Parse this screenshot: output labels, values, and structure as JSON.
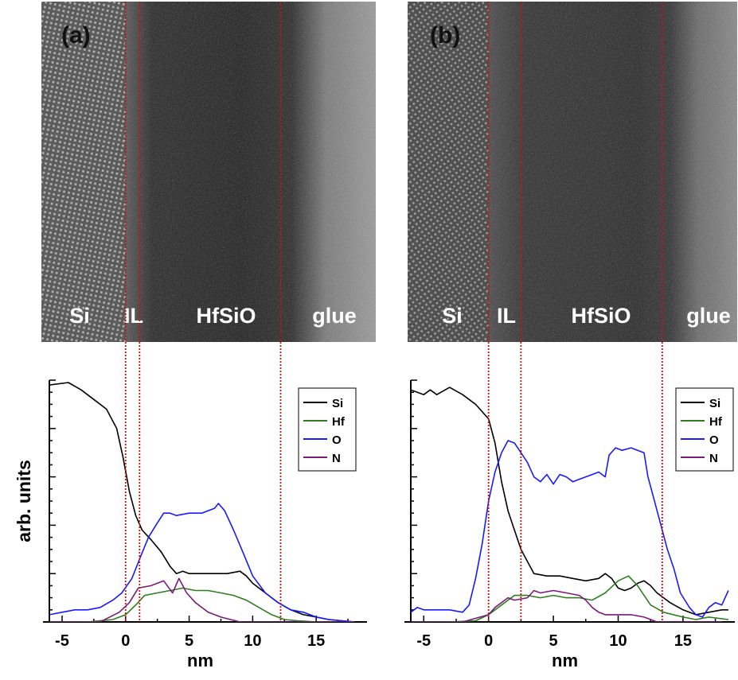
{
  "colors": {
    "Si": "#000000",
    "Hf": "#2e7d1e",
    "O": "#1a1aff",
    "N": "#7a1a7a",
    "boundary": "#cc1111"
  },
  "panels": [
    {
      "letter": "(a)",
      "tem_labels": [
        "Si",
        "IL",
        "HfSiO",
        "glue"
      ],
      "boundaries_nm": [
        0,
        1.1,
        12.2
      ]
    },
    {
      "letter": "(b)",
      "tem_labels": [
        "Si",
        "IL",
        "HfSiO",
        "glue"
      ],
      "boundaries_nm": [
        0,
        2.5,
        13.4
      ]
    }
  ],
  "chart_data": [
    {
      "type": "line",
      "xlabel": "nm",
      "ylabel": "arb. units",
      "xlim": [
        -6,
        19
      ],
      "ylim": [
        0,
        100
      ],
      "xticks": [
        -5,
        0,
        5,
        10,
        15
      ],
      "legend_position": "top-right",
      "series": [
        {
          "name": "Si",
          "points": [
            [
              -6,
              98
            ],
            [
              -4.5,
              99
            ],
            [
              -3.5,
              96
            ],
            [
              -2.5,
              92
            ],
            [
              -1.5,
              88
            ],
            [
              -0.7,
              80
            ],
            [
              -0.2,
              68
            ],
            [
              0.3,
              54
            ],
            [
              0.8,
              44
            ],
            [
              1.3,
              38
            ],
            [
              2,
              34
            ],
            [
              2.8,
              29
            ],
            [
              3.5,
              23
            ],
            [
              4,
              20
            ],
            [
              4.5,
              21
            ],
            [
              5,
              20
            ],
            [
              6,
              20
            ],
            [
              7,
              20
            ],
            [
              8,
              20
            ],
            [
              9,
              21
            ],
            [
              9.5,
              19
            ],
            [
              10,
              16
            ],
            [
              11,
              12
            ],
            [
              12,
              8
            ],
            [
              13,
              5
            ],
            [
              14,
              3
            ],
            [
              15,
              2
            ],
            [
              16,
              1
            ],
            [
              17,
              0.5
            ],
            [
              18,
              0
            ]
          ]
        },
        {
          "name": "Hf",
          "points": [
            [
              -6,
              0
            ],
            [
              -3,
              0
            ],
            [
              -1,
              1
            ],
            [
              0,
              3
            ],
            [
              0.8,
              7
            ],
            [
              1.5,
              11
            ],
            [
              2.5,
              12
            ],
            [
              3.5,
              13
            ],
            [
              4.5,
              14
            ],
            [
              5.5,
              13
            ],
            [
              6.5,
              13
            ],
            [
              7.5,
              12
            ],
            [
              8.5,
              11
            ],
            [
              9.5,
              9
            ],
            [
              10.5,
              6
            ],
            [
              11.5,
              3
            ],
            [
              12.5,
              1
            ],
            [
              13.5,
              0.5
            ],
            [
              15,
              0
            ],
            [
              18,
              0
            ]
          ]
        },
        {
          "name": "O",
          "points": [
            [
              -6,
              3
            ],
            [
              -5,
              4
            ],
            [
              -4,
              5
            ],
            [
              -3,
              5
            ],
            [
              -2,
              6
            ],
            [
              -1,
              9
            ],
            [
              -0.3,
              12
            ],
            [
              0.5,
              18
            ],
            [
              1.1,
              26
            ],
            [
              1.8,
              35
            ],
            [
              2.5,
              41
            ],
            [
              3,
              45
            ],
            [
              3.5,
              45
            ],
            [
              4,
              44
            ],
            [
              5,
              45
            ],
            [
              6,
              45
            ],
            [
              7,
              47
            ],
            [
              7.3,
              49
            ],
            [
              7.8,
              46
            ],
            [
              8.5,
              38
            ],
            [
              9.3,
              28
            ],
            [
              10,
              19
            ],
            [
              11,
              12
            ],
            [
              12,
              8
            ],
            [
              13,
              5
            ],
            [
              14,
              4
            ],
            [
              15,
              2
            ],
            [
              16,
              1
            ],
            [
              17,
              0.5
            ],
            [
              18,
              0
            ]
          ]
        },
        {
          "name": "N",
          "points": [
            [
              -6,
              0
            ],
            [
              -2,
              0
            ],
            [
              -0.5,
              4
            ],
            [
              0.3,
              8
            ],
            [
              1,
              14
            ],
            [
              2,
              15
            ],
            [
              3,
              17
            ],
            [
              3.7,
              12
            ],
            [
              4.2,
              18
            ],
            [
              4.8,
              12
            ],
            [
              5.5,
              8
            ],
            [
              6.5,
              4
            ],
            [
              7.5,
              2
            ],
            [
              9,
              0
            ],
            [
              18,
              0
            ]
          ]
        }
      ]
    },
    {
      "type": "line",
      "xlabel": "nm",
      "ylabel": "",
      "xlim": [
        -6,
        19
      ],
      "ylim": [
        0,
        100
      ],
      "xticks": [
        -5,
        0,
        5,
        10,
        15
      ],
      "legend_position": "top-right",
      "series": [
        {
          "name": "Si",
          "points": [
            [
              -6,
              96
            ],
            [
              -5,
              94
            ],
            [
              -4.5,
              96
            ],
            [
              -4,
              94
            ],
            [
              -3,
              97
            ],
            [
              -2,
              94
            ],
            [
              -1,
              90
            ],
            [
              0,
              84
            ],
            [
              0.5,
              74
            ],
            [
              1,
              58
            ],
            [
              1.5,
              46
            ],
            [
              2,
              38
            ],
            [
              2.5,
              30
            ],
            [
              3,
              25
            ],
            [
              3.5,
              20
            ],
            [
              4.5,
              19
            ],
            [
              5.5,
              19
            ],
            [
              6.5,
              18
            ],
            [
              7.5,
              17
            ],
            [
              8.5,
              18
            ],
            [
              9,
              20
            ],
            [
              9.5,
              18
            ],
            [
              10,
              14
            ],
            [
              10.5,
              13
            ],
            [
              11,
              14
            ],
            [
              11.5,
              16
            ],
            [
              12,
              17
            ],
            [
              12.5,
              15
            ],
            [
              13,
              12
            ],
            [
              14,
              8
            ],
            [
              15,
              5
            ],
            [
              16,
              3
            ],
            [
              17,
              4
            ],
            [
              18,
              5
            ],
            [
              18.5,
              5
            ]
          ]
        },
        {
          "name": "Hf",
          "points": [
            [
              -6,
              0
            ],
            [
              -3,
              0
            ],
            [
              -1,
              0.5
            ],
            [
              0,
              3
            ],
            [
              0.5,
              5
            ],
            [
              1,
              7
            ],
            [
              2,
              11
            ],
            [
              3,
              11
            ],
            [
              4,
              10
            ],
            [
              5,
              11
            ],
            [
              6,
              10
            ],
            [
              7,
              10
            ],
            [
              8,
              9
            ],
            [
              9,
              12
            ],
            [
              10,
              17
            ],
            [
              10.8,
              19
            ],
            [
              11.5,
              15
            ],
            [
              12,
              11
            ],
            [
              12.5,
              7
            ],
            [
              13.5,
              4
            ],
            [
              15,
              2
            ],
            [
              16,
              1
            ],
            [
              17,
              2
            ],
            [
              18.5,
              1
            ]
          ]
        },
        {
          "name": "O",
          "points": [
            [
              -6,
              4
            ],
            [
              -5.5,
              6
            ],
            [
              -5,
              5
            ],
            [
              -4,
              5
            ],
            [
              -3,
              5
            ],
            [
              -2,
              4
            ],
            [
              -1.5,
              7
            ],
            [
              -1,
              18
            ],
            [
              -0.5,
              32
            ],
            [
              0,
              50
            ],
            [
              0.5,
              62
            ],
            [
              1,
              70
            ],
            [
              1.5,
              75
            ],
            [
              2,
              74
            ],
            [
              2.5,
              70
            ],
            [
              3,
              66
            ],
            [
              3.5,
              60
            ],
            [
              4,
              58
            ],
            [
              4.5,
              61
            ],
            [
              5,
              57
            ],
            [
              5.5,
              61
            ],
            [
              6,
              60
            ],
            [
              6.5,
              58
            ],
            [
              7,
              59
            ],
            [
              7.5,
              60
            ],
            [
              8,
              61
            ],
            [
              8.5,
              62
            ],
            [
              9,
              60
            ],
            [
              9.3,
              69
            ],
            [
              9.8,
              72
            ],
            [
              10.3,
              71
            ],
            [
              11,
              72
            ],
            [
              11.5,
              71
            ],
            [
              12,
              70
            ],
            [
              12.3,
              60
            ],
            [
              12.8,
              50
            ],
            [
              13.3,
              40
            ],
            [
              13.8,
              30
            ],
            [
              14.3,
              22
            ],
            [
              14.8,
              12
            ],
            [
              15.5,
              6
            ],
            [
              16,
              3
            ],
            [
              16.5,
              2
            ],
            [
              17,
              6
            ],
            [
              17.5,
              8
            ],
            [
              18,
              7
            ],
            [
              18.5,
              13
            ]
          ]
        },
        {
          "name": "N",
          "points": [
            [
              -6,
              0
            ],
            [
              -2,
              0
            ],
            [
              0,
              3
            ],
            [
              0.5,
              6
            ],
            [
              1.5,
              10
            ],
            [
              2,
              9
            ],
            [
              3,
              10
            ],
            [
              3.5,
              13
            ],
            [
              4,
              12
            ],
            [
              5,
              13
            ],
            [
              6,
              12
            ],
            [
              7,
              11
            ],
            [
              7.5,
              9
            ],
            [
              8,
              6
            ],
            [
              8.5,
              4
            ],
            [
              9,
              3
            ],
            [
              10,
              3
            ],
            [
              11,
              3
            ],
            [
              12,
              2
            ],
            [
              13,
              0
            ],
            [
              14,
              0
            ],
            [
              18,
              0
            ]
          ]
        }
      ]
    }
  ]
}
